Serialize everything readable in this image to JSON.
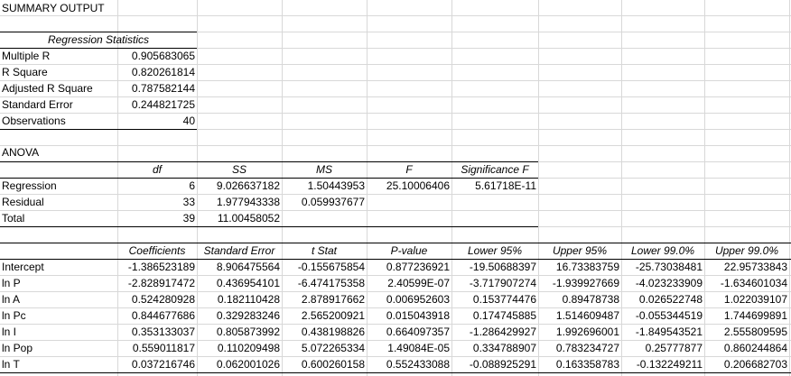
{
  "colors": {
    "grid_line": "#d8d8d8",
    "border": "#000000",
    "background": "#ffffff"
  },
  "summary_title": "SUMMARY OUTPUT",
  "regression_statistics": {
    "header": "Regression Statistics",
    "rows": [
      {
        "label": "Multiple R",
        "value": "0.905683065"
      },
      {
        "label": "R Square",
        "value": "0.820261814"
      },
      {
        "label": "Adjusted R Square",
        "value": "0.787582144"
      },
      {
        "label": "Standard Error",
        "value": "0.244821725"
      },
      {
        "label": "Observations",
        "value": "40"
      }
    ]
  },
  "anova": {
    "title": "ANOVA",
    "headers": [
      "df",
      "SS",
      "MS",
      "F",
      "Significance F"
    ],
    "rows": [
      {
        "label": "Regression",
        "cells": [
          "6",
          "9.026637182",
          "1.50443953",
          "25.10006406",
          "5.61718E-11"
        ]
      },
      {
        "label": "Residual",
        "cells": [
          "33",
          "1.977943338",
          "0.059937677",
          "",
          ""
        ]
      },
      {
        "label": "Total",
        "cells": [
          "39",
          "11.00458052",
          "",
          "",
          ""
        ]
      }
    ]
  },
  "coefficients": {
    "headers": [
      "Coefficients",
      "Standard Error",
      "t Stat",
      "P-value",
      "Lower 95%",
      "Upper 95%",
      "Lower 99.0%",
      "Upper 99.0%"
    ],
    "rows": [
      {
        "label": "Intercept",
        "cells": [
          "-1.386523189",
          "8.906475564",
          "-0.155675854",
          "0.877236921",
          "-19.50688397",
          "16.73383759",
          "-25.73038481",
          "22.95733843"
        ]
      },
      {
        "label": "ln P",
        "cells": [
          "-2.828917472",
          "0.436954101",
          "-6.474175358",
          "2.40599E-07",
          "-3.717907274",
          "-1.939927669",
          "-4.023233909",
          "-1.634601034"
        ]
      },
      {
        "label": "ln A",
        "cells": [
          "0.524280928",
          "0.182110428",
          "2.878917662",
          "0.006952603",
          "0.153774476",
          "0.89478738",
          "0.026522748",
          "1.022039107"
        ]
      },
      {
        "label": "ln Pc",
        "cells": [
          "0.844677686",
          "0.329283246",
          "2.565200921",
          "0.015043918",
          "0.174745885",
          "1.514609487",
          "-0.055344519",
          "1.744699891"
        ]
      },
      {
        "label": "ln I",
        "cells": [
          "0.353133037",
          "0.805873992",
          "0.438198826",
          "0.664097357",
          "-1.286429927",
          "1.992696001",
          "-1.849543521",
          "2.555809595"
        ]
      },
      {
        "label": "ln Pop",
        "cells": [
          "0.559011817",
          "0.110209498",
          "5.072265334",
          "1.49084E-05",
          "0.334788907",
          "0.783234727",
          "0.25777877",
          "0.860244864"
        ]
      },
      {
        "label": "ln T",
        "cells": [
          "0.037216746",
          "0.062001026",
          "0.600260158",
          "0.552433088",
          "-0.088925291",
          "0.163358783",
          "-0.132249211",
          "0.206682703"
        ]
      }
    ]
  }
}
